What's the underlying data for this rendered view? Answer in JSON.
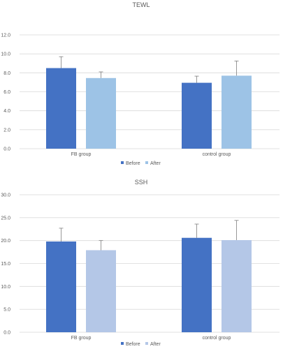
{
  "chart_data": [
    {
      "type": "bar",
      "title": "TEWL",
      "categories": [
        "FB group",
        "control group"
      ],
      "ylim": [
        0,
        12
      ],
      "yticks": [
        "0.0",
        "2.0",
        "4.0",
        "6.0",
        "8.0",
        "10.0",
        "12.0"
      ],
      "grid": true,
      "legend_position": "bottom",
      "series": [
        {
          "name": "Before",
          "color": "#4472c4",
          "values": [
            8.5,
            6.95
          ],
          "error": [
            1.2,
            0.7
          ]
        },
        {
          "name": "After",
          "color": "#9dc3e6",
          "values": [
            7.45,
            7.7
          ],
          "error": [
            0.65,
            1.55
          ]
        }
      ]
    },
    {
      "type": "bar",
      "title": "SSH",
      "categories": [
        "FB group",
        "control group"
      ],
      "ylim": [
        0,
        30
      ],
      "yticks": [
        "0.0",
        "5.0",
        "10.0",
        "15.0",
        "20.0",
        "25.0",
        "30.0"
      ],
      "grid": true,
      "legend_position": "bottom",
      "series": [
        {
          "name": "Before",
          "color": "#4472c4",
          "values": [
            19.8,
            20.6
          ],
          "error": [
            2.9,
            3.0
          ]
        },
        {
          "name": "After",
          "color": "#b4c7e7",
          "values": [
            17.9,
            20.1
          ],
          "error": [
            2.1,
            4.3
          ]
        }
      ]
    }
  ]
}
